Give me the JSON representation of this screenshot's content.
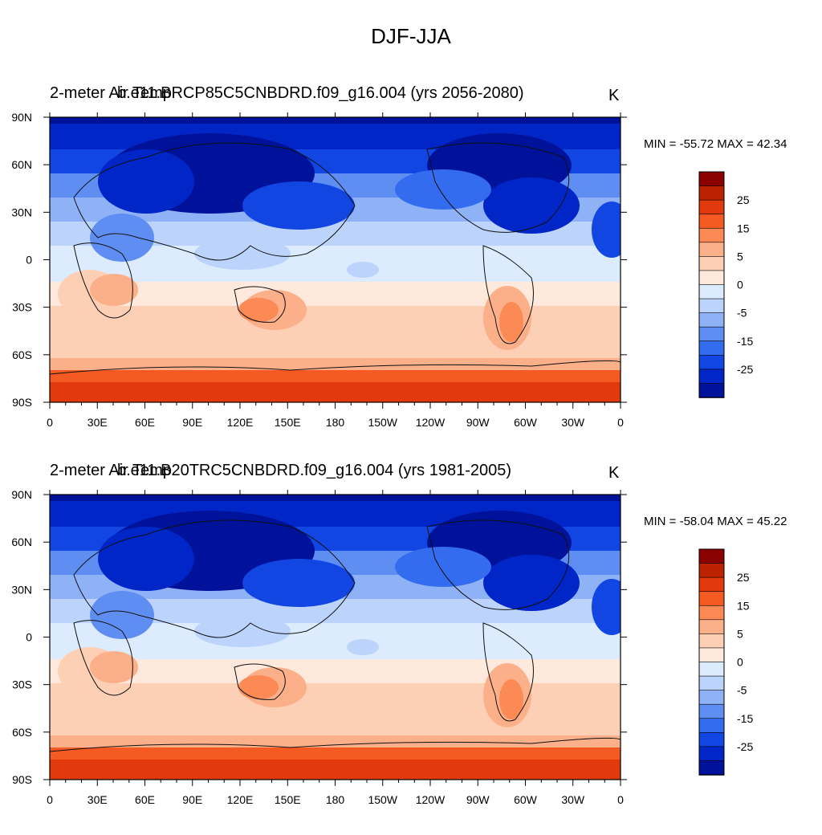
{
  "title": "DJF-JJA",
  "units": "K",
  "colorbar_labels": [
    "25",
    "15",
    "5",
    "0",
    "-5",
    "-15",
    "-25"
  ],
  "colorbar_colors": [
    "#8b0000",
    "#bb2200",
    "#e23a0c",
    "#f55a22",
    "#fb8a55",
    "#fcb08a",
    "#fdd0b5",
    "#fee9dc",
    "#dcebfd",
    "#bcd4fb",
    "#8fb2f6",
    "#5e8ef2",
    "#346cef",
    "#1146e3",
    "#0026c8",
    "#00129a"
  ],
  "x_ticks": [
    "0",
    "30E",
    "60E",
    "90E",
    "120E",
    "150E",
    "180",
    "150W",
    "120W",
    "90W",
    "60W",
    "30W",
    "0"
  ],
  "y_ticks": [
    "90N",
    "60N",
    "30N",
    "0",
    "30S",
    "60S",
    "90S"
  ],
  "panels": [
    {
      "variable_name": "2-meter Air Temp",
      "case_name": "b.e11.BRCP85C5CNBDRD.f09_g16.004 (yrs 2056-2080)",
      "units": "K",
      "min_max": "MIN = -55.72 MAX =  42.34"
    },
    {
      "variable_name": "2-meter Air Temp",
      "case_name": "b.e11.B20TRC5CNBDRD.f09_g16.004 (yrs 1981-2005)",
      "units": "K",
      "min_max": "MIN = -58.04 MAX =  45.22"
    }
  ]
}
